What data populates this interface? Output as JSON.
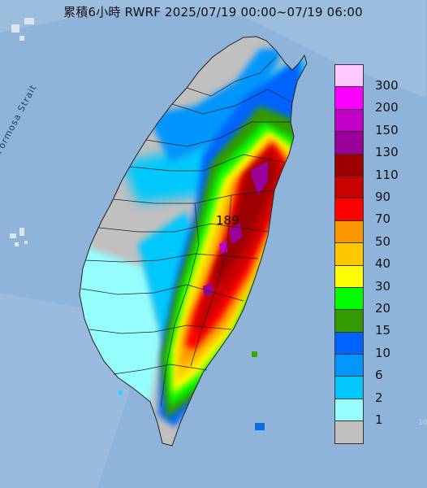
{
  "title": "累積6小時 RWRF 2025/07/19 00:00~07/19 06:00",
  "strait_label": "Formosa Strait",
  "max_value_label": "189",
  "corner_text": "10",
  "legend": {
    "levels": [
      {
        "label": "300",
        "color": "#fdc8fd"
      },
      {
        "label": "200",
        "color": "#fd00fd"
      },
      {
        "label": "150",
        "color": "#c300c8"
      },
      {
        "label": "130",
        "color": "#9a009a"
      },
      {
        "label": "110",
        "color": "#9c0000"
      },
      {
        "label": "90",
        "color": "#c80000"
      },
      {
        "label": "70",
        "color": "#fd0000"
      },
      {
        "label": "50",
        "color": "#fd9700"
      },
      {
        "label": "40",
        "color": "#fdc800"
      },
      {
        "label": "30",
        "color": "#fdfd00"
      },
      {
        "label": "20",
        "color": "#00fd00"
      },
      {
        "label": "15",
        "color": "#339900"
      },
      {
        "label": "10",
        "color": "#0063fd"
      },
      {
        "label": "6",
        "color": "#0096fd"
      },
      {
        "label": "2",
        "color": "#00c8fd"
      },
      {
        "label": "1",
        "color": "#96fdfd"
      },
      {
        "label": "",
        "color": "#c0c0c0"
      }
    ]
  }
}
